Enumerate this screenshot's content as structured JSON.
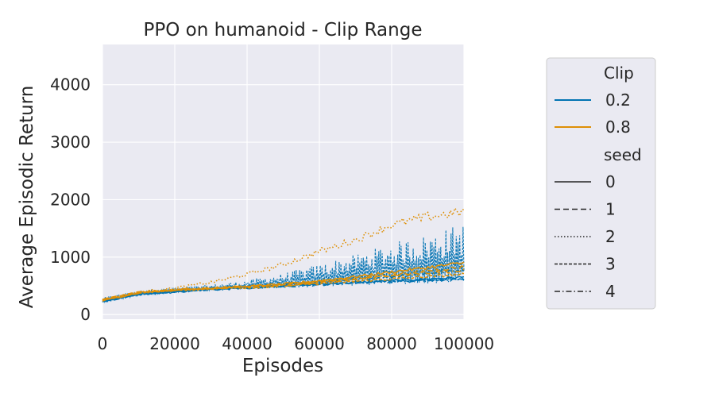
{
  "chart_data": {
    "type": "line",
    "title": "PPO on humanoid - Clip Range",
    "xlabel": "Episodes",
    "ylabel": "Average Episodic Return",
    "xlim": [
      0,
      100000
    ],
    "ylim": [
      -80,
      4700
    ],
    "x_ticks": [
      0,
      20000,
      40000,
      60000,
      80000,
      100000
    ],
    "y_ticks": [
      0,
      1000,
      2000,
      3000,
      4000
    ],
    "grid": true,
    "background": "#eaeaf2",
    "legend_position": "outside-right",
    "legend": {
      "hue_title": "Clip",
      "hue_entries": [
        {
          "label": "0.2",
          "color": "#0173b2"
        },
        {
          "label": "0.8",
          "color": "#de8f05"
        }
      ],
      "style_title": "seed",
      "style_entries": [
        {
          "label": "0",
          "dash": "solid"
        },
        {
          "label": "1",
          "dash": "dashed"
        },
        {
          "label": "2",
          "dash": "dotted"
        },
        {
          "label": "3",
          "dash": "densely-dashed"
        },
        {
          "label": "4",
          "dash": "dash-dot"
        }
      ]
    },
    "series": [
      {
        "clip": "0.2",
        "seed": "0",
        "x": [
          0,
          10000,
          20000,
          30000,
          40000,
          50000,
          60000,
          70000,
          80000,
          90000,
          100000
        ],
        "y": [
          230,
          350,
          400,
          440,
          470,
          500,
          530,
          560,
          590,
          620,
          650
        ]
      },
      {
        "clip": "0.2",
        "seed": "1",
        "x": [
          0,
          10000,
          20000,
          30000,
          40000,
          50000,
          60000,
          70000,
          80000,
          90000,
          100000
        ],
        "y": [
          250,
          360,
          410,
          450,
          480,
          520,
          560,
          610,
          660,
          720,
          780
        ]
      },
      {
        "clip": "0.2",
        "seed": "2",
        "x": [
          0,
          10000,
          20000,
          30000,
          40000,
          50000,
          60000,
          70000,
          80000,
          90000,
          100000
        ],
        "y": [
          260,
          370,
          420,
          460,
          490,
          530,
          580,
          640,
          700,
          760,
          820
        ]
      },
      {
        "clip": "0.2",
        "seed": "3",
        "x": [
          0,
          10000,
          20000,
          30000,
          40000,
          50000,
          60000,
          70000,
          80000,
          90000,
          100000
        ],
        "y": [
          240,
          350,
          400,
          440,
          470,
          500,
          530,
          560,
          580,
          600,
          620
        ]
      },
      {
        "clip": "0.2",
        "seed": "4",
        "x": [
          0,
          10000,
          20000,
          30000,
          40000,
          50000,
          60000,
          70000,
          80000,
          90000,
          100000
        ],
        "y": [
          220,
          340,
          390,
          430,
          460,
          490,
          520,
          550,
          570,
          590,
          610
        ]
      },
      {
        "clip": "0.8",
        "seed": "0",
        "x": [
          0,
          10000,
          20000,
          30000,
          40000,
          50000,
          60000,
          70000,
          80000,
          90000,
          100000
        ],
        "y": [
          240,
          380,
          430,
          460,
          490,
          530,
          590,
          660,
          740,
          820,
          900
        ]
      },
      {
        "clip": "0.8",
        "seed": "1",
        "x": [
          0,
          10000,
          20000,
          30000,
          40000,
          50000,
          60000,
          70000,
          80000,
          90000,
          100000
        ],
        "y": [
          270,
          390,
          430,
          460,
          480,
          510,
          560,
          620,
          690,
          760,
          830
        ]
      },
      {
        "clip": "0.8",
        "seed": "2",
        "x": [
          0,
          10000,
          20000,
          30000,
          40000,
          50000,
          60000,
          70000,
          80000,
          90000,
          100000
        ],
        "y": [
          260,
          390,
          460,
          560,
          700,
          870,
          1100,
          1300,
          1560,
          1700,
          1790
        ]
      },
      {
        "clip": "0.8",
        "seed": "3",
        "x": [
          0,
          10000,
          20000,
          30000,
          40000,
          50000,
          60000,
          70000,
          80000,
          90000,
          100000
        ],
        "y": [
          250,
          380,
          420,
          450,
          470,
          500,
          540,
          580,
          620,
          660,
          700
        ]
      },
      {
        "clip": "0.8",
        "seed": "4",
        "x": [
          0,
          10000,
          20000,
          30000,
          40000,
          50000,
          60000,
          70000,
          80000,
          90000,
          100000
        ],
        "y": [
          260,
          380,
          430,
          460,
          490,
          520,
          570,
          620,
          680,
          730,
          760
        ]
      }
    ],
    "noise_bands": [
      {
        "clip": "0.2",
        "x": [
          0,
          10000,
          20000,
          30000,
          40000,
          50000,
          60000,
          70000,
          80000,
          90000,
          100000
        ],
        "low": [
          200,
          330,
          380,
          420,
          440,
          460,
          480,
          500,
          520,
          540,
          560
        ],
        "high": [
          300,
          420,
          470,
          520,
          600,
          720,
          880,
          1050,
          1250,
          1400,
          1600
        ]
      }
    ]
  }
}
